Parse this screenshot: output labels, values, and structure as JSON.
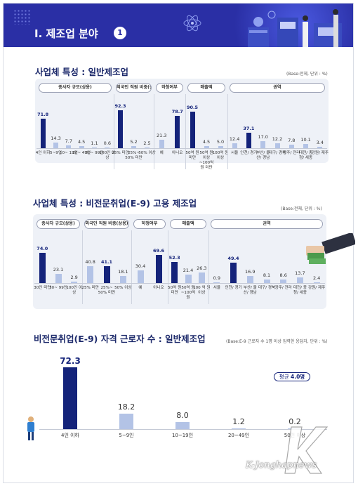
{
  "header": {
    "title": "Ⅰ. 제조업 분야",
    "number": "1"
  },
  "colors": {
    "navy": "#14237a",
    "light": "#b3c3e6",
    "header_bg": "#2a2fa5"
  },
  "chart_data": [
    {
      "type": "bar",
      "title": "사업체 특성 : 일반제조업",
      "base_note": "(Base:전체, 단위 : %)",
      "groups": [
        {
          "label": "종사자 규모(상용)",
          "categories": [
            "4인 이하",
            "5~9인",
            "10~ 19인",
            "20~ 49인",
            "50~ 99인",
            "100인 이상"
          ],
          "values": [
            71.8,
            14.3,
            7.7,
            4.5,
            1.1,
            0.6
          ]
        },
        {
          "label": "외국인 직원 비중(상용)",
          "categories": [
            "25% 미만",
            "25%~ 50% 미만",
            "50% 이상"
          ],
          "values": [
            92.3,
            5.2,
            2.5
          ]
        },
        {
          "label": "하청여부",
          "categories": [
            "예",
            "아니오"
          ],
          "values": [
            21.3,
            78.7
          ]
        },
        {
          "label": "매출액",
          "categories": [
            "50억 원 미만",
            "50억 원 이상 ~100억 원 미만",
            "100억 원 이상"
          ],
          "values": [
            90.5,
            4.5,
            5.0
          ]
        },
        {
          "label": "권역",
          "categories": [
            "서울",
            "인천/ 경기",
            "부산/ 울산/ 경남",
            "대구/ 경북",
            "광주/ 전라",
            "대전/ 충청/ 세종",
            "강원/ 제주"
          ],
          "values": [
            12.4,
            37.1,
            17.0,
            12.2,
            7.8,
            10.1,
            3.4
          ]
        }
      ]
    },
    {
      "type": "bar",
      "title": "사업체 특성 : 비전문취업(E-9) 고용 제조업",
      "base_note": "(Base:전체, 단위 : %)",
      "groups": [
        {
          "label": "종사자 규모(상용)",
          "categories": [
            "30인 미만",
            "30~ 99인",
            "100인 이상"
          ],
          "values": [
            74.0,
            23.1,
            2.9
          ]
        },
        {
          "label": "외국인 직원 비중(상용)",
          "categories": [
            "25% 미만",
            "25%~ 50% 미만",
            "50% 이상"
          ],
          "values": [
            40.8,
            41.1,
            18.1
          ]
        },
        {
          "label": "하청여부",
          "categories": [
            "예",
            "아니오"
          ],
          "values": [
            30.4,
            69.6
          ]
        },
        {
          "label": "매출액",
          "categories": [
            "50억 원 미만",
            "50억 원 ~100억 원",
            "100 억 원 이상"
          ],
          "values": [
            52.3,
            21.4,
            26.3
          ]
        },
        {
          "label": "권역",
          "categories": [
            "서울",
            "인천/ 경기",
            "부산/ 울산/ 경남",
            "대구/ 경북",
            "광주/ 전라",
            "대전/ 충청/ 세종",
            "강원/ 제주"
          ],
          "values": [
            0.9,
            49.4,
            16.9,
            8.1,
            8.6,
            13.7,
            2.4
          ]
        }
      ]
    },
    {
      "type": "bar",
      "title": "비전문취업(E-9) 자격 근로자 수 : 일반제조업",
      "base_note": "(Base:E-9 근로자 수 1명 이상 입력한 응답자, 단위 : %)",
      "average_label": "평균",
      "average_value": "4.0명",
      "categories": [
        "4인 이하",
        "5~9인",
        "10~19인",
        "20~49인",
        "50인 이상"
      ],
      "values": [
        72.3,
        18.2,
        8.0,
        1.2,
        0.2
      ]
    }
  ],
  "watermark": {
    "text": "K-Jonghapnews"
  }
}
